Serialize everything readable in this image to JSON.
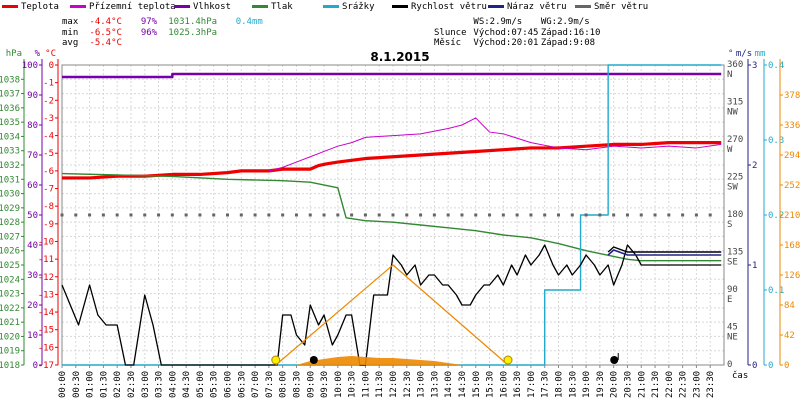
{
  "legend": [
    {
      "label": "Teplota",
      "color": "#ee0000"
    },
    {
      "label": "Přízemní teplota",
      "color": "#cc00cc"
    },
    {
      "label": "Vlhkost",
      "color": "#7700aa"
    },
    {
      "label": "Tlak",
      "color": "#338833"
    },
    {
      "label": "Srážky",
      "color": "#22aacc"
    },
    {
      "label": "Rychlost větru",
      "color": "#000000"
    },
    {
      "label": "Náraz větru",
      "color": "#222288"
    },
    {
      "label": "Směr větru",
      "color": "#666666"
    }
  ],
  "stats": {
    "max": {
      "label": "max",
      "temp": "-4.4°C",
      "hum": "97%",
      "press": "1031.4hPa",
      "rain": "0.4mm"
    },
    "min": {
      "label": "min",
      "temp": "-6.5°C",
      "hum": "96%",
      "press": "1025.3hPa"
    },
    "avg": {
      "label": "avg",
      "temp": "-5.4°C"
    }
  },
  "info": {
    "ws": "WS:2.9m/s",
    "wg": "WG:2.9m/s",
    "sun_label": "Slunce",
    "sunrise": "Východ:07:45",
    "sunset": "Západ:16:10",
    "moon_label": "Měsíc",
    "moonrise": "Východ:20:01",
    "moonset": "Západ:9:08"
  },
  "date": "8.1.2015",
  "colors": {
    "temp": "#ee0000",
    "ground_temp": "#cc00cc",
    "humidity": "#7700aa",
    "pressure": "#338833",
    "rain": "#22aacc",
    "wind": "#000000",
    "gust": "#222288",
    "direction": "#666666",
    "sun": "#ee8800",
    "moon": "#ff9900",
    "ax_hpa": "#338833",
    "ax_pct": "#7700aa",
    "ax_c": "#ee0000",
    "ax_ms": "#222288",
    "ax_mm": "#22aacc",
    "ax_orange": "#ee8800"
  },
  "chart_data": {
    "type": "line",
    "title": "8.1.2015",
    "x_label": "čas",
    "x_ticks": [
      "00:00",
      "00:30",
      "01:00",
      "01:30",
      "02:00",
      "02:30",
      "03:00",
      "03:30",
      "04:00",
      "04:30",
      "05:00",
      "05:30",
      "06:00",
      "06:30",
      "07:00",
      "07:30",
      "08:00",
      "08:30",
      "09:00",
      "09:30",
      "10:00",
      "10:30",
      "11:00",
      "11:30",
      "12:00",
      "12:30",
      "13:00",
      "13:30",
      "14:00",
      "14:30",
      "15:00",
      "15:30",
      "16:00",
      "16:30",
      "17:00",
      "17:30",
      "18:00",
      "18:30",
      "19:00",
      "19:30",
      "20:00",
      "20:30",
      "21:00",
      "21:30",
      "22:00",
      "22:30",
      "23:00",
      "23:30"
    ],
    "axes": {
      "hPa": {
        "label": "hPa",
        "range": [
          1018,
          1039
        ],
        "ticks": [
          1018,
          1019,
          1020,
          1021,
          1022,
          1023,
          1024,
          1025,
          1026,
          1027,
          1028,
          1029,
          1030,
          1031,
          1032,
          1033,
          1034,
          1035,
          1036,
          1037,
          1038
        ]
      },
      "pct": {
        "label": "%",
        "range": [
          0,
          100
        ],
        "ticks": [
          0,
          10,
          20,
          30,
          40,
          50,
          60,
          70,
          80,
          90,
          100
        ]
      },
      "degC": {
        "label": "°C",
        "range": [
          -17,
          0
        ],
        "ticks": [
          0,
          -1,
          -2,
          -3,
          -4,
          -5,
          -6,
          -7,
          -8,
          -9,
          -10,
          -11,
          -12,
          -13,
          -14,
          -15,
          -16,
          -17
        ]
      },
      "direction": {
        "label": "°",
        "ticks": [
          {
            "deg": 360,
            "dir": "N"
          },
          {
            "deg": 315,
            "dir": "NW"
          },
          {
            "deg": 270,
            "dir": "W"
          },
          {
            "deg": 225,
            "dir": "SW"
          },
          {
            "deg": 180,
            "dir": "S"
          },
          {
            "deg": 135,
            "dir": "SE"
          },
          {
            "deg": 90,
            "dir": "E"
          },
          {
            "deg": 45,
            "dir": "NE"
          },
          {
            "deg": 0,
            "dir": ""
          }
        ]
      },
      "ms": {
        "label": "m/s",
        "range": [
          0,
          3
        ],
        "ticks": [
          0,
          1,
          2,
          3
        ]
      },
      "mm": {
        "label": "mm",
        "range": [
          0,
          0.4
        ],
        "ticks": [
          0,
          0.1,
          0.2,
          0.3,
          0.4
        ]
      },
      "orange": {
        "range": [
          0,
          420
        ],
        "ticks": [
          0,
          42,
          84,
          126,
          168,
          210,
          252,
          294,
          336,
          378
        ]
      }
    },
    "series": [
      {
        "name": "Teplota",
        "key": "temp",
        "axis": "degC",
        "x": [
          0,
          1,
          2,
          3,
          4,
          5,
          6,
          6.5,
          7,
          7.5,
          8,
          8.5,
          9,
          9.3,
          9.6,
          10,
          10.5,
          11,
          12,
          13,
          14,
          15,
          16,
          17,
          18,
          19,
          20,
          21,
          22,
          23,
          23.9
        ],
        "y": [
          -6.4,
          -6.4,
          -6.3,
          -6.3,
          -6.2,
          -6.2,
          -6.1,
          -6.0,
          -6.0,
          -6.0,
          -5.9,
          -5.9,
          -5.9,
          -5.7,
          -5.6,
          -5.5,
          -5.4,
          -5.3,
          -5.2,
          -5.1,
          -5.0,
          -4.9,
          -4.8,
          -4.7,
          -4.7,
          -4.6,
          -4.5,
          -4.5,
          -4.4,
          -4.4,
          -4.4
        ]
      },
      {
        "name": "Přízemní teplota",
        "key": "ground_temp",
        "axis": "degC",
        "x": [
          7.5,
          8,
          8.5,
          9,
          9.5,
          10,
          10.5,
          11,
          12,
          13,
          14,
          14.5,
          15,
          15.5,
          16,
          17,
          18,
          19,
          20,
          21,
          22,
          23,
          23.9
        ],
        "y": [
          -6.0,
          -5.8,
          -5.5,
          -5.2,
          -4.9,
          -4.6,
          -4.4,
          -4.1,
          -4.0,
          -3.9,
          -3.6,
          -3.4,
          -3.0,
          -3.8,
          -3.9,
          -4.4,
          -4.7,
          -4.8,
          -4.6,
          -4.7,
          -4.6,
          -4.7,
          -4.5
        ]
      },
      {
        "name": "Vlhkost",
        "key": "humidity",
        "axis": "pct",
        "x": [
          0,
          3.5,
          4,
          23.9
        ],
        "y": [
          96,
          96,
          97,
          97
        ]
      },
      {
        "name": "Tlak",
        "key": "pressure",
        "axis": "hPa",
        "x": [
          0,
          2,
          4,
          6,
          8,
          9,
          10,
          10.3,
          11,
          12,
          13,
          14,
          15,
          16,
          17,
          18,
          19,
          20,
          20.5,
          21,
          22,
          23,
          23.9
        ],
        "y": [
          1031.4,
          1031.3,
          1031.2,
          1031.0,
          1030.9,
          1030.8,
          1030.4,
          1028.3,
          1028.1,
          1028.0,
          1027.8,
          1027.6,
          1027.4,
          1027.1,
          1026.9,
          1026.5,
          1026.0,
          1025.6,
          1025.4,
          1025.3,
          1025.3,
          1025.3,
          1025.3
        ]
      },
      {
        "name": "Srážky",
        "key": "rain",
        "axis": "mm",
        "x": [
          0,
          17.2,
          17.5,
          18.5,
          18.8,
          19.5,
          19.8,
          23.9
        ],
        "y": [
          0,
          0,
          0.1,
          0.1,
          0.2,
          0.2,
          0.4,
          0.4
        ]
      },
      {
        "name": "Rychlost větru",
        "key": "wind",
        "axis": "ms",
        "x": [
          0,
          0.3,
          0.6,
          1,
          1.3,
          1.6,
          2,
          2.3,
          2.6,
          3,
          3.3,
          3.6,
          4,
          7,
          7.5,
          7.8,
          8,
          8.3,
          8.5,
          8.8,
          9,
          9.3,
          9.5,
          9.8,
          10,
          10.3,
          10.5,
          10.8,
          11,
          11.3,
          11.5,
          11.8,
          12,
          12.3,
          12.5,
          12.8,
          13,
          13.3,
          13.5,
          13.8,
          14,
          14.3,
          14.5,
          14.8,
          15,
          15.3,
          15.5,
          15.8,
          16,
          16.3,
          16.5,
          16.8,
          17,
          17.3,
          17.5,
          17.8,
          18,
          18.3,
          18.5,
          18.8,
          19,
          19.3,
          19.5,
          19.8,
          20,
          20.3,
          20.5,
          20.8,
          21,
          21.3,
          21.5,
          21.8,
          22,
          22.3,
          22.5,
          22.8,
          23,
          23.3,
          23.6,
          23.9
        ],
        "y": [
          0.8,
          0.6,
          0.4,
          0.8,
          0.5,
          0.4,
          0.4,
          0,
          0,
          0.7,
          0.4,
          0,
          0,
          0,
          0,
          0,
          0.5,
          0.5,
          0.3,
          0.2,
          0.6,
          0.4,
          0.5,
          0.2,
          0.3,
          0.5,
          0.5,
          0,
          0,
          0.7,
          0.7,
          0.7,
          1.1,
          1.0,
          0.9,
          1.0,
          0.8,
          0.9,
          0.9,
          0.8,
          0.8,
          0.7,
          0.6,
          0.6,
          0.7,
          0.8,
          0.8,
          0.9,
          0.8,
          1.0,
          0.9,
          1.1,
          1.0,
          1.1,
          1.2,
          1.0,
          0.9,
          1.0,
          0.9,
          1.0,
          1.1,
          1.0,
          0.9,
          1.0,
          0.8,
          1.0,
          1.2,
          1.1,
          1.0,
          1.0,
          1.0,
          1.0,
          1.0,
          1.0,
          1.0,
          1.0,
          1.0,
          1.0,
          1.0,
          1.0
        ]
      },
      {
        "name": "Náraz větru",
        "key": "gust",
        "axis": "ms",
        "x": [
          19.8,
          20,
          20.5,
          21,
          22,
          23,
          23.9
        ],
        "y": [
          1.1,
          1.15,
          1.1,
          1.1,
          1.1,
          1.1,
          1.1
        ]
      },
      {
        "name": "Směr větru",
        "key": "direction",
        "axis": "direction",
        "x": [
          0,
          0.5,
          1,
          1.5,
          2,
          2.5,
          3,
          3.5,
          4,
          4.5,
          5,
          5.5,
          6,
          6.5,
          7,
          7.5,
          8,
          8.5,
          9,
          9.5,
          10,
          10.5,
          11,
          11.5,
          12,
          12.5,
          13,
          13.5,
          14,
          14.5,
          15,
          15.5,
          16,
          16.5,
          17,
          17.5,
          18,
          18.5,
          19,
          19.5,
          20,
          20.5,
          21,
          21.5,
          22,
          22.5,
          23,
          23.5
        ],
        "y": [
          180,
          180,
          180,
          180,
          180,
          180,
          180,
          180,
          180,
          180,
          180,
          180,
          180,
          180,
          180,
          180,
          180,
          180,
          180,
          180,
          180,
          180,
          180,
          180,
          180,
          180,
          180,
          180,
          180,
          180,
          180,
          180,
          180,
          180,
          180,
          180,
          180,
          180,
          180,
          180,
          180,
          180,
          180,
          180,
          180,
          180,
          180,
          180
        ]
      },
      {
        "name": "",
        "key": "sun_elev",
        "axis": "orange",
        "x": [
          7.75,
          12,
          16.17
        ],
        "y": [
          0,
          140,
          0
        ]
      }
    ]
  }
}
